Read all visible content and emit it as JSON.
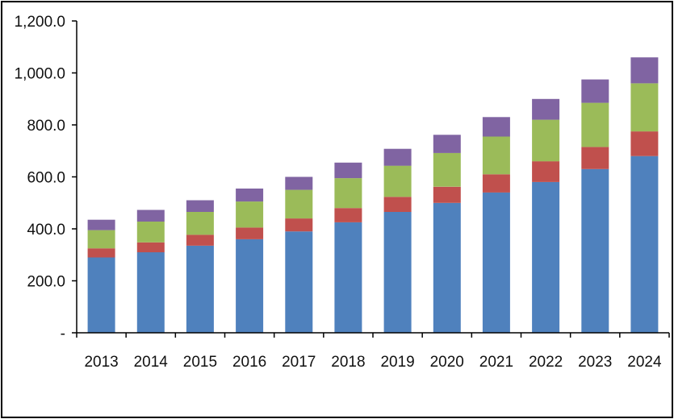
{
  "chart_data": {
    "type": "bar",
    "stacked": true,
    "title": "",
    "xlabel": "",
    "ylabel": "",
    "ylim": [
      0,
      1200
    ],
    "y_ticks": [
      0,
      200,
      400,
      600,
      800,
      1000,
      1200
    ],
    "y_tick_labels": [
      "-",
      "200.0",
      "400.0",
      "600.0",
      "800.0",
      "1,000.0",
      "1,200.0"
    ],
    "grid": false,
    "legend": "none",
    "categories": [
      "2013",
      "2014",
      "2015",
      "2016",
      "2017",
      "2018",
      "2019",
      "2020",
      "2021",
      "2022",
      "2023",
      "2024"
    ],
    "series": [
      {
        "color": "#4F81BD",
        "values": [
          290,
          310,
          335,
          360,
          390,
          425,
          465,
          500,
          540,
          580,
          630,
          680
        ]
      },
      {
        "color": "#C0504D",
        "values": [
          35,
          38,
          42,
          45,
          50,
          55,
          58,
          62,
          70,
          80,
          85,
          95
        ]
      },
      {
        "color": "#9BBB59",
        "values": [
          70,
          80,
          88,
          100,
          110,
          115,
          120,
          130,
          145,
          160,
          170,
          185
        ]
      },
      {
        "color": "#8064A2",
        "values": [
          40,
          45,
          45,
          50,
          50,
          60,
          65,
          70,
          75,
          80,
          90,
          100
        ]
      }
    ]
  }
}
